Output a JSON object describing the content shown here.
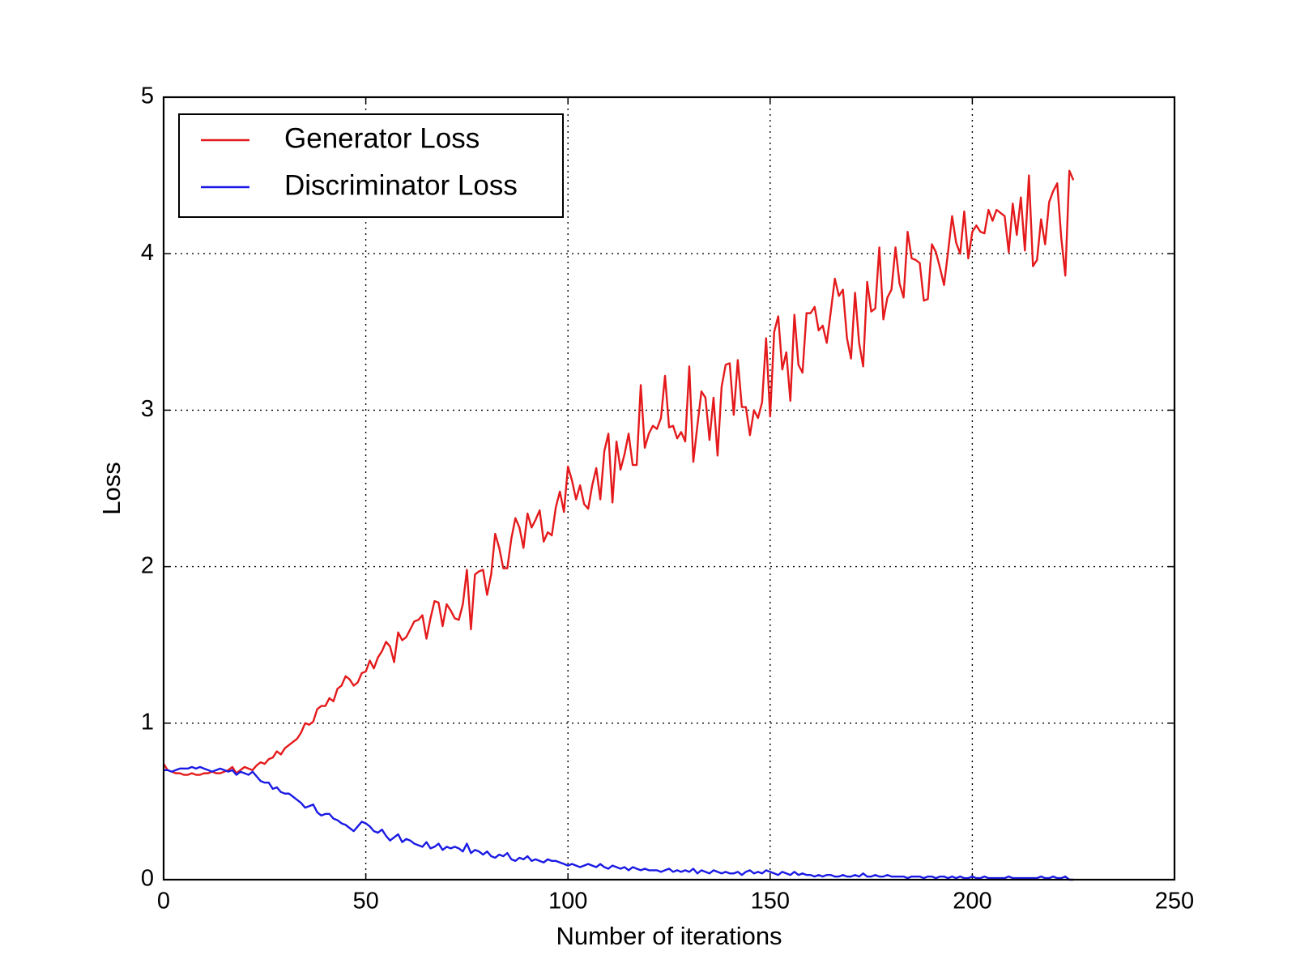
{
  "chart_data": {
    "type": "line",
    "xlabel": "Number of iterations",
    "ylabel": "Loss",
    "xlim": [
      0,
      250
    ],
    "xticks": [
      0,
      50,
      100,
      150,
      200,
      250
    ],
    "ylim": [
      0,
      5
    ],
    "yticks": [
      0,
      1,
      2,
      3,
      4,
      5
    ],
    "grid": true,
    "legend": "upper left",
    "x": [
      0,
      1,
      2,
      3,
      4,
      5,
      6,
      7,
      8,
      9,
      10,
      11,
      12,
      13,
      14,
      15,
      16,
      17,
      18,
      19,
      20,
      21,
      22,
      23,
      24,
      25,
      26,
      27,
      28,
      29,
      30,
      31,
      32,
      33,
      34,
      35,
      36,
      37,
      38,
      39,
      40,
      41,
      42,
      43,
      44,
      45,
      46,
      47,
      48,
      49,
      50,
      51,
      52,
      53,
      54,
      55,
      56,
      57,
      58,
      59,
      60,
      61,
      62,
      63,
      64,
      65,
      66,
      67,
      68,
      69,
      70,
      71,
      72,
      73,
      74,
      75,
      76,
      77,
      78,
      79,
      80,
      81,
      82,
      83,
      84,
      85,
      86,
      87,
      88,
      89,
      90,
      91,
      92,
      93,
      94,
      95,
      96,
      97,
      98,
      99,
      100,
      101,
      102,
      103,
      104,
      105,
      106,
      107,
      108,
      109,
      110,
      111,
      112,
      113,
      114,
      115,
      116,
      117,
      118,
      119,
      120,
      121,
      122,
      123,
      124,
      125,
      126,
      127,
      128,
      129,
      130,
      131,
      132,
      133,
      134,
      135,
      136,
      137,
      138,
      139,
      140,
      141,
      142,
      143,
      144,
      145,
      146,
      147,
      148,
      149,
      150,
      151,
      152,
      153,
      154,
      155,
      156,
      157,
      158,
      159,
      160,
      161,
      162,
      163,
      164,
      165,
      166,
      167,
      168,
      169,
      170,
      171,
      172,
      173,
      174,
      175,
      176,
      177,
      178,
      179,
      180,
      181,
      182,
      183,
      184,
      185,
      186,
      187,
      188,
      189,
      190,
      191,
      192,
      193,
      194,
      195,
      196,
      197,
      198,
      199,
      200,
      201,
      202,
      203,
      204,
      205,
      206,
      207,
      208,
      209,
      210,
      211,
      212,
      213,
      214,
      215,
      216,
      217,
      218,
      219,
      220,
      221,
      222,
      223,
      224,
      225
    ],
    "series": [
      {
        "name": "Generator Loss",
        "color": "#e41a1c",
        "values": [
          0.74,
          0.7,
          0.69,
          0.68,
          0.68,
          0.67,
          0.67,
          0.68,
          0.67,
          0.67,
          0.68,
          0.68,
          0.69,
          0.68,
          0.68,
          0.69,
          0.7,
          0.72,
          0.68,
          0.7,
          0.72,
          0.71,
          0.7,
          0.73,
          0.75,
          0.74,
          0.77,
          0.78,
          0.82,
          0.8,
          0.84,
          0.86,
          0.88,
          0.9,
          0.94,
          1.0,
          0.99,
          1.01,
          1.09,
          1.11,
          1.11,
          1.16,
          1.14,
          1.22,
          1.24,
          1.3,
          1.28,
          1.24,
          1.26,
          1.32,
          1.33,
          1.4,
          1.35,
          1.42,
          1.46,
          1.52,
          1.49,
          1.39,
          1.58,
          1.53,
          1.55,
          1.6,
          1.65,
          1.66,
          1.69,
          1.54,
          1.67,
          1.78,
          1.77,
          1.62,
          1.76,
          1.72,
          1.67,
          1.66,
          1.76,
          1.98,
          1.6,
          1.95,
          1.97,
          1.98,
          1.82,
          1.95,
          2.21,
          2.12,
          1.99,
          1.99,
          2.18,
          2.31,
          2.25,
          2.12,
          2.34,
          2.25,
          2.3,
          2.36,
          2.16,
          2.22,
          2.2,
          2.38,
          2.48,
          2.35,
          2.64,
          2.55,
          2.43,
          2.52,
          2.4,
          2.37,
          2.52,
          2.63,
          2.43,
          2.74,
          2.85,
          2.41,
          2.8,
          2.62,
          2.72,
          2.85,
          2.65,
          2.65,
          3.16,
          2.76,
          2.85,
          2.9,
          2.88,
          2.95,
          3.22,
          2.89,
          2.9,
          2.82,
          2.86,
          2.8,
          3.28,
          2.67,
          2.9,
          3.12,
          3.08,
          2.81,
          3.08,
          2.71,
          3.15,
          3.29,
          3.3,
          2.97,
          3.32,
          3.02,
          3.02,
          2.84,
          3.0,
          2.95,
          3.05,
          3.46,
          2.96,
          3.5,
          3.6,
          3.26,
          3.37,
          3.06,
          3.61,
          3.29,
          3.24,
          3.62,
          3.62,
          3.66,
          3.51,
          3.54,
          3.43,
          3.63,
          3.84,
          3.73,
          3.77,
          3.46,
          3.33,
          3.75,
          3.43,
          3.28,
          3.82,
          3.63,
          3.65,
          4.04,
          3.58,
          3.72,
          3.77,
          4.04,
          3.81,
          3.72,
          4.14,
          3.97,
          3.96,
          3.94,
          3.7,
          3.71,
          4.06,
          4.01,
          3.91,
          3.8,
          4.01,
          4.24,
          4.07,
          4.0,
          4.27,
          3.97,
          4.14,
          4.18,
          4.14,
          4.13,
          4.28,
          4.21,
          4.28,
          4.26,
          4.24,
          4.01,
          4.32,
          4.12,
          4.36,
          4.02,
          4.5,
          3.92,
          3.96,
          4.22,
          4.06,
          4.33,
          4.4,
          4.45,
          4.1,
          3.86,
          4.53,
          4.47
        ]
      },
      {
        "name": "Discriminator Loss",
        "color": "#1a1ae4",
        "values": [
          0.7,
          0.7,
          0.69,
          0.7,
          0.71,
          0.71,
          0.71,
          0.72,
          0.71,
          0.72,
          0.71,
          0.7,
          0.69,
          0.7,
          0.71,
          0.7,
          0.69,
          0.7,
          0.67,
          0.69,
          0.68,
          0.67,
          0.69,
          0.66,
          0.63,
          0.62,
          0.62,
          0.58,
          0.59,
          0.56,
          0.55,
          0.55,
          0.53,
          0.51,
          0.49,
          0.46,
          0.47,
          0.48,
          0.43,
          0.41,
          0.42,
          0.42,
          0.39,
          0.38,
          0.36,
          0.35,
          0.33,
          0.31,
          0.34,
          0.37,
          0.36,
          0.34,
          0.31,
          0.3,
          0.32,
          0.28,
          0.25,
          0.27,
          0.29,
          0.24,
          0.26,
          0.25,
          0.23,
          0.22,
          0.21,
          0.24,
          0.2,
          0.21,
          0.23,
          0.19,
          0.21,
          0.2,
          0.21,
          0.2,
          0.18,
          0.23,
          0.17,
          0.19,
          0.18,
          0.16,
          0.18,
          0.15,
          0.14,
          0.16,
          0.15,
          0.17,
          0.13,
          0.12,
          0.14,
          0.13,
          0.15,
          0.12,
          0.13,
          0.12,
          0.11,
          0.13,
          0.12,
          0.12,
          0.11,
          0.1,
          0.09,
          0.1,
          0.09,
          0.08,
          0.09,
          0.1,
          0.09,
          0.08,
          0.1,
          0.08,
          0.07,
          0.09,
          0.08,
          0.07,
          0.08,
          0.06,
          0.08,
          0.07,
          0.06,
          0.07,
          0.06,
          0.06,
          0.06,
          0.05,
          0.06,
          0.07,
          0.05,
          0.06,
          0.05,
          0.06,
          0.05,
          0.07,
          0.04,
          0.06,
          0.05,
          0.04,
          0.06,
          0.05,
          0.04,
          0.05,
          0.04,
          0.04,
          0.05,
          0.03,
          0.05,
          0.06,
          0.04,
          0.05,
          0.04,
          0.06,
          0.05,
          0.04,
          0.03,
          0.05,
          0.04,
          0.03,
          0.05,
          0.03,
          0.04,
          0.03,
          0.03,
          0.02,
          0.03,
          0.02,
          0.03,
          0.03,
          0.02,
          0.02,
          0.03,
          0.02,
          0.02,
          0.03,
          0.02,
          0.04,
          0.02,
          0.02,
          0.03,
          0.02,
          0.02,
          0.03,
          0.02,
          0.02,
          0.02,
          0.02,
          0.01,
          0.02,
          0.02,
          0.02,
          0.01,
          0.02,
          0.02,
          0.01,
          0.02,
          0.02,
          0.01,
          0.02,
          0.01,
          0.02,
          0.01,
          0.01,
          0.02,
          0.01,
          0.01,
          0.02,
          0.01,
          0.01,
          0.01,
          0.01,
          0.01,
          0.02,
          0.01,
          0.01,
          0.01,
          0.01,
          0.01,
          0.01,
          0.01,
          0.02,
          0.01,
          0.01,
          0.02,
          0.01,
          0.01,
          0.02,
          0.0,
          0.0
        ]
      }
    ]
  }
}
